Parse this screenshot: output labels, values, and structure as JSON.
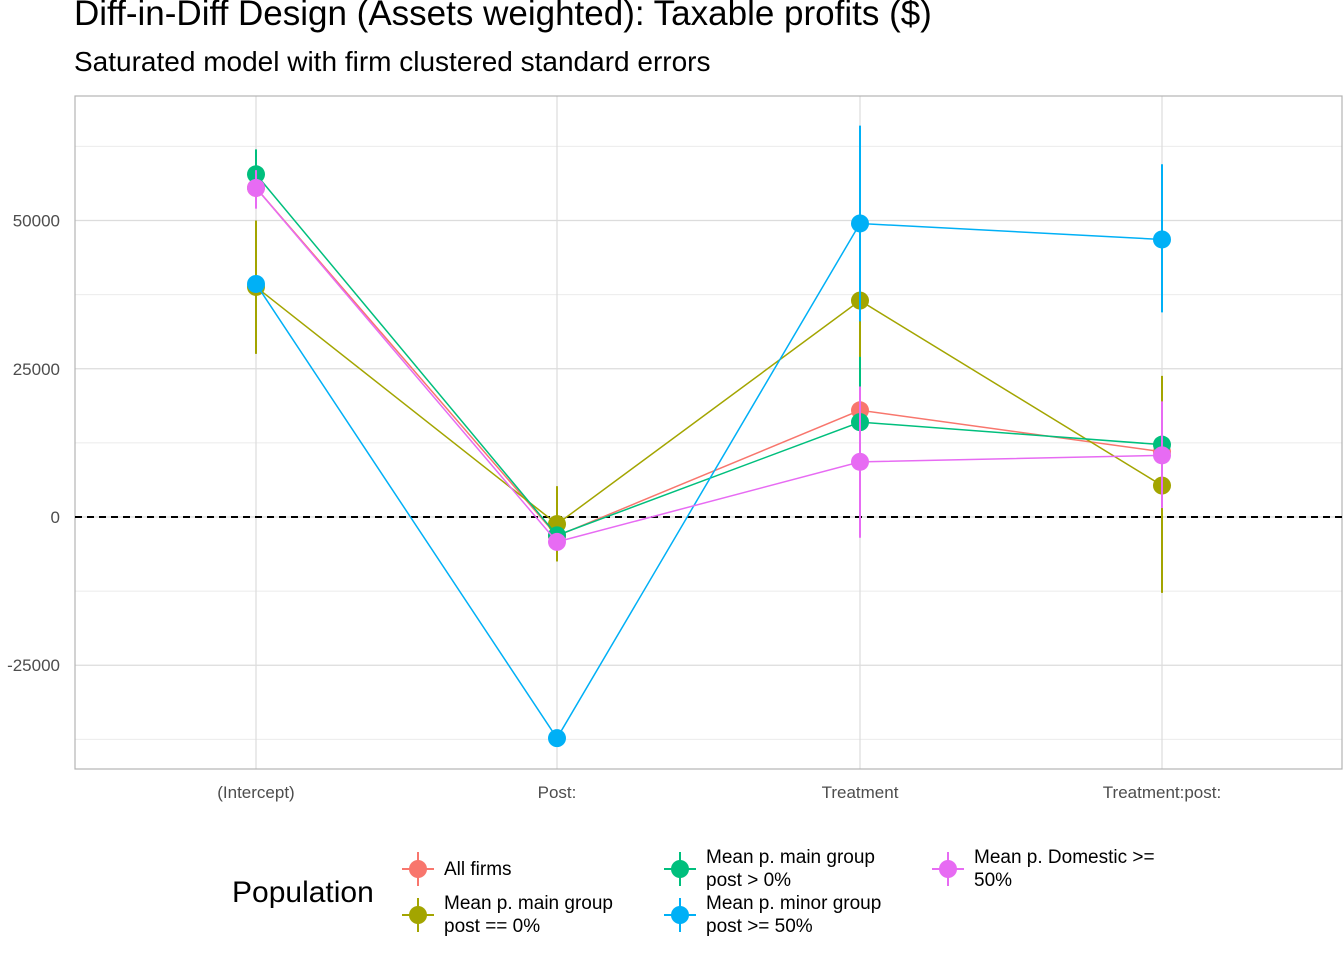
{
  "chart_data": {
    "type": "scatter",
    "title": "Diff-in-Diff Design (Assets weighted): Taxable profits  ($)",
    "subtitle": "Saturated model with firm clustered standard errors",
    "xlabel": "",
    "ylabel": "",
    "categories": [
      "(Intercept)",
      "Post:",
      "Treatment",
      "Treatment:post:"
    ],
    "y_ticks": [
      -25000,
      0,
      25000,
      50000
    ],
    "y_tick_labels": [
      "-25000",
      "0",
      "25000",
      "50000"
    ],
    "ylim": [
      -42500,
      71000
    ],
    "reference_line": {
      "y": 0,
      "style": "dashed",
      "color": "#000000"
    },
    "grid": true,
    "legend_title": "Population",
    "legend_position": "bottom",
    "series": [
      {
        "name": "All firms",
        "color": "#F8766D",
        "values": [
          55500,
          -3200,
          18000,
          11000
        ],
        "ci_low": [
          null,
          null,
          14000,
          null
        ],
        "ci_high": [
          null,
          null,
          22000,
          null
        ]
      },
      {
        "name": "Mean p. main group\npost == 0%",
        "color": "#A3A500",
        "values": [
          38800,
          -1200,
          36500,
          5300
        ],
        "ci_low": [
          27500,
          -7500,
          24000,
          -12800
        ],
        "ci_high": [
          50000,
          5200,
          49000,
          23800
        ]
      },
      {
        "name": "Mean p. main group\npost > 0%",
        "color": "#00BF7D",
        "values": [
          57800,
          -3100,
          16000,
          12200
        ],
        "ci_low": [
          53500,
          null,
          5000,
          null
        ],
        "ci_high": [
          62000,
          null,
          27000,
          null
        ]
      },
      {
        "name": "Mean p. minor group\npost >= 50%",
        "color": "#00B0F6",
        "values": [
          39300,
          -37300,
          49500,
          46800
        ],
        "ci_low": [
          null,
          null,
          33000,
          34500
        ],
        "ci_high": [
          null,
          null,
          66000,
          59500
        ]
      },
      {
        "name": "Mean p. Domestic >=\n50%",
        "color": "#E76BF3",
        "values": [
          55500,
          -4200,
          9300,
          10400
        ],
        "ci_low": [
          52000,
          null,
          -3500,
          1500
        ],
        "ci_high": [
          58500,
          null,
          22000,
          19500
        ]
      }
    ]
  }
}
